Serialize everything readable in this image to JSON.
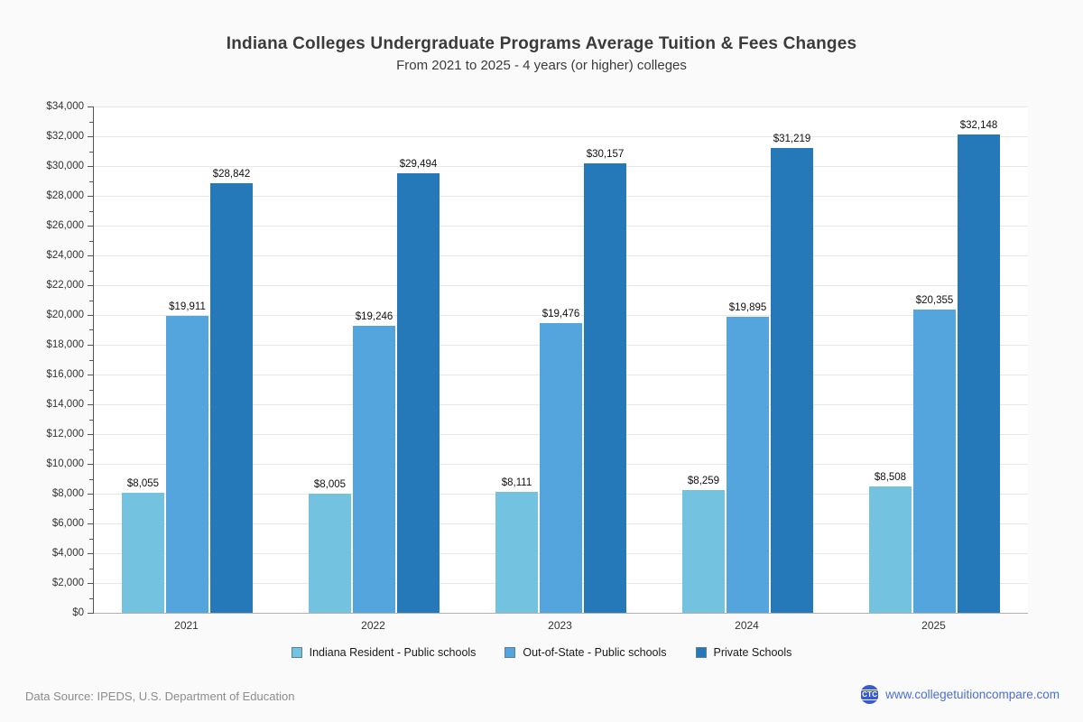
{
  "title": "Indiana Colleges Undergraduate Programs Average Tuition & Fees Changes",
  "subtitle": "From 2021 to 2025 - 4 years (or higher) colleges",
  "chart_data": {
    "type": "bar",
    "title": "Indiana Colleges Undergraduate Programs Average Tuition & Fees Changes",
    "subtitle": "From 2021 to 2025 - 4 years (or higher) colleges",
    "categories": [
      "2021",
      "2022",
      "2023",
      "2024",
      "2025"
    ],
    "series": [
      {
        "name": "Indiana Resident - Public schools",
        "color": "#73c3e0",
        "values": [
          8055,
          8005,
          8111,
          8259,
          8508
        ],
        "labels": [
          "$8,055",
          "$8,005",
          "$8,111",
          "$8,259",
          "$8,508"
        ]
      },
      {
        "name": "Out-of-State - Public schools",
        "color": "#54a4de",
        "values": [
          19911,
          19246,
          19476,
          19895,
          20355
        ],
        "labels": [
          "$19,911",
          "$19,246",
          "$19,476",
          "$19,895",
          "$20,355"
        ]
      },
      {
        "name": "Private Schools",
        "color": "#2679b8",
        "values": [
          28842,
          29494,
          30157,
          31219,
          32148
        ],
        "labels": [
          "$28,842",
          "$29,494",
          "$30,157",
          "$31,219",
          "$32,148"
        ]
      }
    ],
    "xlabel": "",
    "ylabel": "",
    "ylim": [
      0,
      34000
    ],
    "ytick_step": 2000,
    "minor_tick_step": 1000,
    "ytick_prefix": "$",
    "grid": true,
    "legend_position": "bottom"
  },
  "footer": {
    "source": "Data Source: IPEDS, U.S. Department of Education",
    "site": "www.collegetuitioncompare.com",
    "logo_text": "CTC"
  },
  "colors": {
    "page_bg": "#fafafa",
    "plot_bg": "#ffffff",
    "grid": "#e7e7e7",
    "y_axis_line": "#565656",
    "x_axis_line": "#b0b0b0",
    "title_text": "#3b3b3b",
    "axis_text": "#333333",
    "value_label_text": "#111111",
    "legend_marker_border": "#5f7d99",
    "footer_text": "#8c8c8c",
    "link": "#4a6fd4",
    "logo_bg": "#3a5bd0"
  }
}
